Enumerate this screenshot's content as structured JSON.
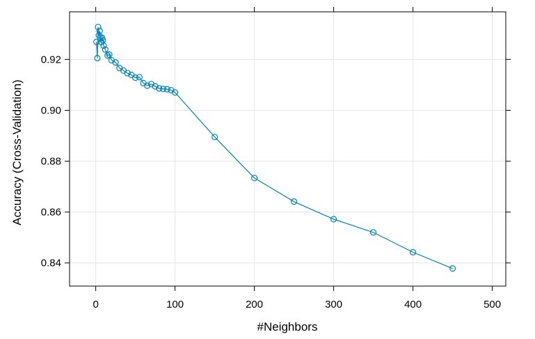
{
  "chart_data": {
    "type": "line",
    "xlabel": "#Neighbors",
    "ylabel": "Accuracy (Cross-Validation)",
    "xlim": [
      -33,
      517
    ],
    "ylim": [
      0.8309,
      0.9387
    ],
    "xticks": [
      0,
      100,
      200,
      300,
      400,
      500
    ],
    "yticks": [
      0.84,
      0.86,
      0.88,
      0.9,
      0.92
    ],
    "xtick_labels": [
      "0",
      "100",
      "200",
      "300",
      "400",
      "500"
    ],
    "ytick_labels": [
      "0.84",
      "0.86",
      "0.88",
      "0.90",
      "0.92"
    ],
    "grid": true,
    "color": "#0080B8",
    "series": [
      {
        "x": [
          1,
          2,
          3,
          4,
          5,
          6,
          7,
          8,
          9,
          10,
          12,
          15,
          17,
          20,
          25,
          30,
          35,
          40,
          45,
          50,
          55,
          60,
          65,
          70,
          75,
          80,
          85,
          90,
          95,
          100,
          150,
          200,
          250,
          300,
          350,
          400,
          450
        ],
        "y": [
          0.9269,
          0.9205,
          0.9327,
          0.9295,
          0.9312,
          0.9285,
          0.9268,
          0.9285,
          0.9275,
          0.9254,
          0.9239,
          0.9215,
          0.9219,
          0.9197,
          0.9188,
          0.9166,
          0.9156,
          0.9146,
          0.9139,
          0.9128,
          0.913,
          0.9107,
          0.9097,
          0.9103,
          0.9094,
          0.9086,
          0.9084,
          0.9083,
          0.9079,
          0.907,
          0.8895,
          0.8734,
          0.8641,
          0.8572,
          0.852,
          0.8442,
          0.8378
        ]
      }
    ]
  }
}
